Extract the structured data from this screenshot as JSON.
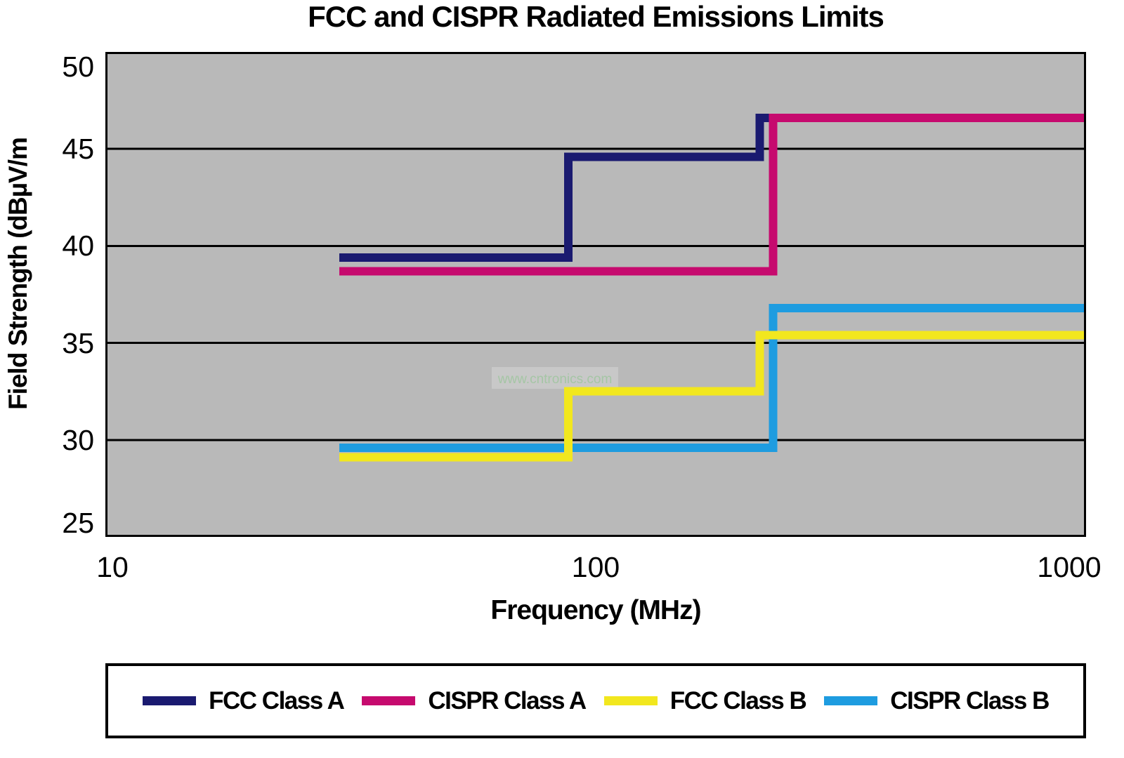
{
  "title": "FCC and CISPR Radiated Emissions Limits",
  "watermark": {
    "text": "www.cntronics.com",
    "band_color": "#c8c8c8",
    "text_color": "#a5c6a5"
  },
  "axes": {
    "x_label": "Frequency (MHz)",
    "y_label": "Field Strength (dBµV/m",
    "x_ticks": [
      "10",
      "100",
      "1000"
    ],
    "y_ticks": [
      "50",
      "45",
      "40",
      "35",
      "30",
      "25"
    ]
  },
  "colors": {
    "plot_background": "#b9b9b9",
    "gridline": "#000000",
    "border": "#000000",
    "fcc_class_a": "#1a1a70",
    "cispr_class_a": "#c60a6e",
    "fcc_class_b": "#f2e71e",
    "cispr_class_b": "#1e9ce0"
  },
  "legend": {
    "items": [
      {
        "label": "FCC Class A",
        "color": "#1a1a70"
      },
      {
        "label": "CISPR Class A",
        "color": "#c60a6e"
      },
      {
        "label": "FCC Class B",
        "color": "#f2e71e"
      },
      {
        "label": "CISPR Class B",
        "color": "#1e9ce0"
      }
    ]
  },
  "chart_data": {
    "type": "line",
    "subtype": "step",
    "title": "FCC and CISPR Radiated Emissions Limits",
    "xlabel": "Frequency (MHz)",
    "ylabel": "Field Strength (dBµV/m",
    "x_scale": "log",
    "xlim": [
      10,
      1000
    ],
    "ylim": [
      25,
      50
    ],
    "x_ticks": [
      10,
      100,
      1000
    ],
    "y_ticks": [
      25,
      30,
      35,
      40,
      45,
      50
    ],
    "grid": "horizontal-only",
    "legend_position": "bottom",
    "series": [
      {
        "name": "FCC Class A",
        "color": "#1a1a70",
        "step_points": [
          [
            30,
            39.4
          ],
          [
            88,
            44.6
          ],
          [
            216,
            46.6
          ],
          [
            1000,
            46.6
          ]
        ]
      },
      {
        "name": "CISPR Class A",
        "color": "#c60a6e",
        "step_points": [
          [
            30,
            38.7
          ],
          [
            230,
            46.6
          ],
          [
            1000,
            46.6
          ]
        ]
      },
      {
        "name": "FCC Class B",
        "color": "#f2e71e",
        "step_points": [
          [
            30,
            29.1
          ],
          [
            88,
            32.5
          ],
          [
            216,
            35.4
          ],
          [
            1000,
            35.4
          ]
        ]
      },
      {
        "name": "CISPR Class B",
        "color": "#1e9ce0",
        "step_points": [
          [
            30,
            29.6
          ],
          [
            230,
            36.8
          ],
          [
            1000,
            36.8
          ]
        ]
      }
    ]
  }
}
